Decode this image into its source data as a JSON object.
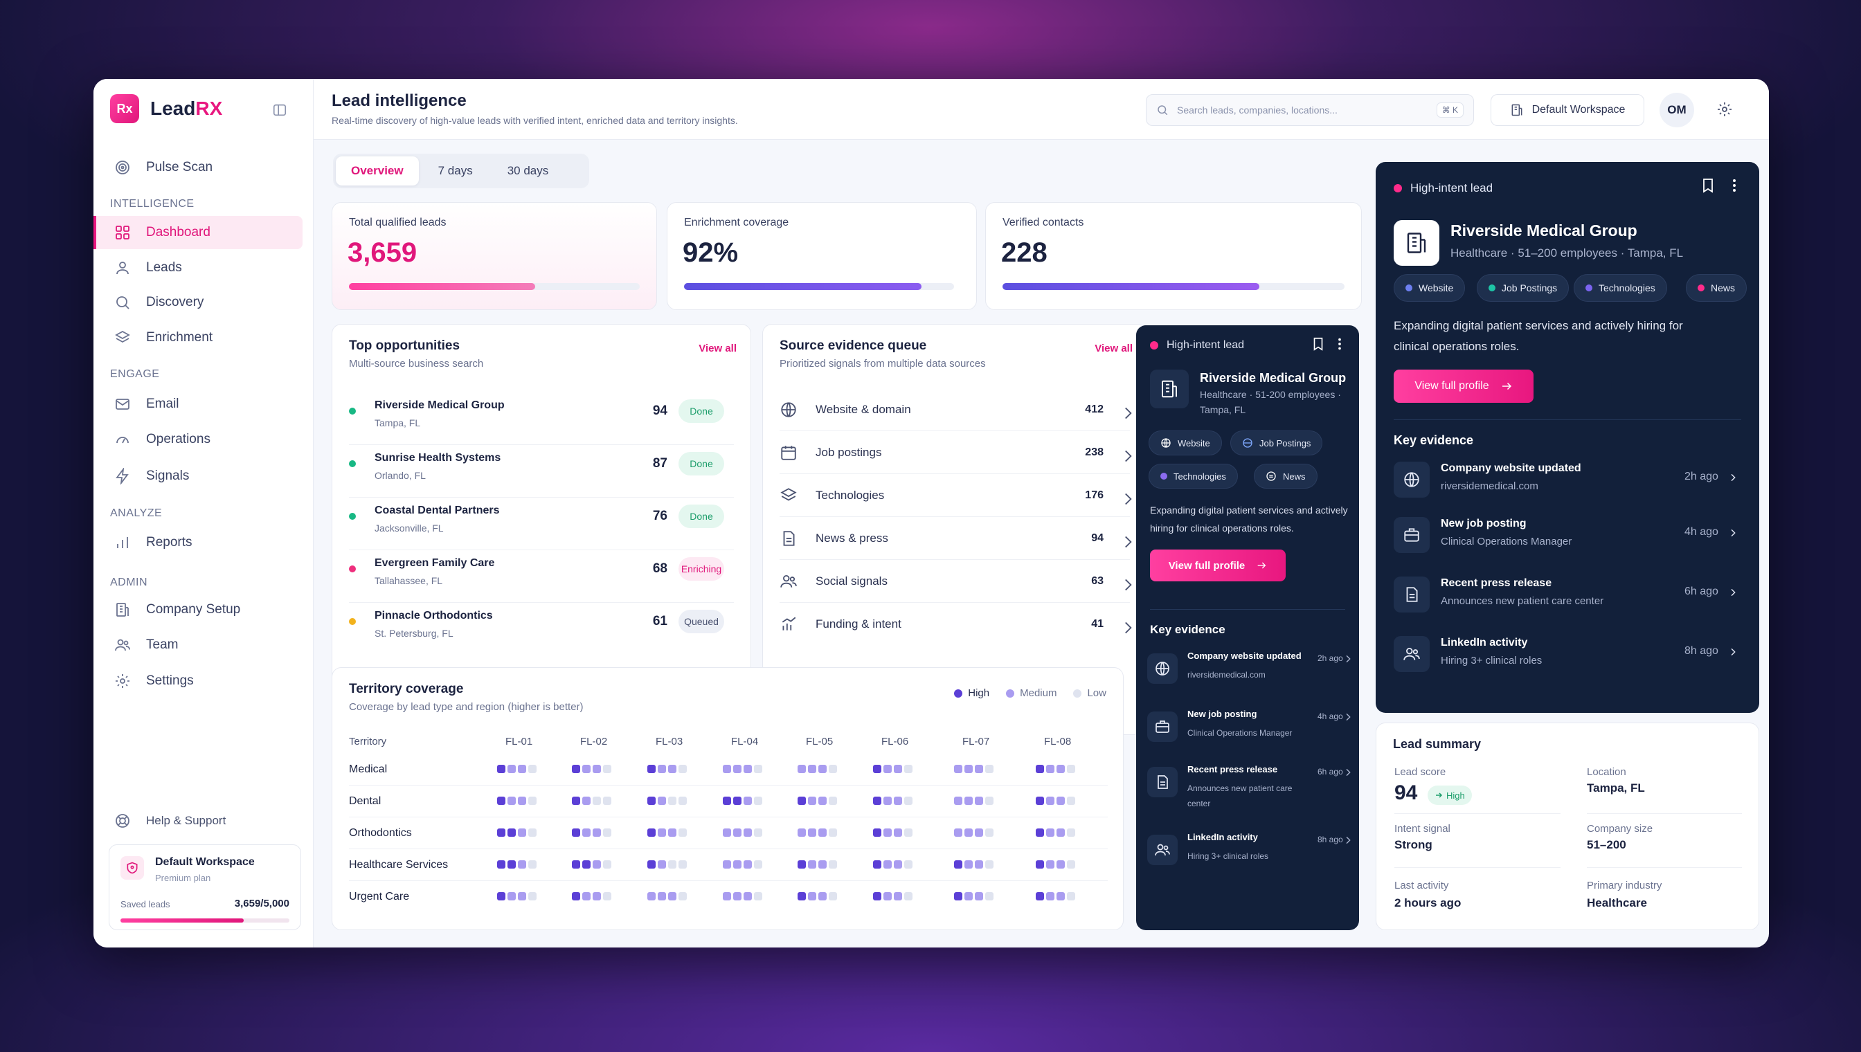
{
  "brand": {
    "logo": "Rx",
    "name_a": "Lead",
    "name_b": "RX"
  },
  "sidebar": {
    "top_item": "Pulse Scan",
    "sections": {
      "intelligence": "INTELLIGENCE",
      "engage": "ENGAGE",
      "analyze": "ANALYZE",
      "admin": "ADMIN"
    },
    "items": [
      "Dashboard",
      "Leads",
      "Discovery",
      "Enrichment",
      "Email",
      "Operations",
      "Signals",
      "Reports",
      "Company Setup",
      "Team",
      "Settings"
    ],
    "help": "Help & Support",
    "workspace": {
      "name": "Default Workspace",
      "plan": "Premium plan",
      "label": "Saved leads",
      "value": "3,659/5,000",
      "fraction": 0.73
    }
  },
  "header": {
    "title": "Lead intelligence",
    "subtitle": "Real-time discovery of high-value leads with verified intent, enriched data and territory insights.",
    "search_placeholder": "Search leads, companies, locations...",
    "shortcut": "⌘ K",
    "workspace_button": "Default Workspace",
    "avatar": "OM"
  },
  "tabs": [
    "Overview",
    "7 days",
    "30 days"
  ],
  "kpis": [
    {
      "label": "Total qualified leads",
      "value": "3,659",
      "fraction": 0.64
    },
    {
      "label": "Enrichment coverage",
      "value": "92%",
      "fraction": 0.88
    },
    {
      "label": "Verified contacts",
      "value": "228",
      "fraction": 0.75
    }
  ],
  "opportunities": {
    "title": "Top opportunities",
    "subtitle": "Multi-source business search",
    "view_all": "View all",
    "rows": [
      {
        "name": "Riverside Medical Group",
        "loc": "Tampa, FL",
        "score": "94",
        "status": "Done",
        "dot": "#18b884"
      },
      {
        "name": "Sunrise Health Systems",
        "loc": "Orlando, FL",
        "score": "87",
        "status": "Done",
        "dot": "#18b884"
      },
      {
        "name": "Coastal Dental Partners",
        "loc": "Jacksonville, FL",
        "score": "76",
        "status": "Done",
        "dot": "#18b884"
      },
      {
        "name": "Evergreen Family Care",
        "loc": "Tallahassee, FL",
        "score": "68",
        "status": "Enriching",
        "dot": "#ee2f7d"
      },
      {
        "name": "Pinnacle Orthodontics",
        "loc": "St. Petersburg, FL",
        "score": "61",
        "status": "Queued",
        "dot": "#f2b21d"
      }
    ]
  },
  "sources": {
    "title": "Source evidence queue",
    "subtitle": "Prioritized signals from multiple data sources",
    "view_all": "View all",
    "rows": [
      {
        "label": "Website & domain",
        "count": "412"
      },
      {
        "label": "Job postings",
        "count": "238"
      },
      {
        "label": "Technologies",
        "count": "176"
      },
      {
        "label": "News & press",
        "count": "94"
      },
      {
        "label": "Social signals",
        "count": "63"
      },
      {
        "label": "Funding & intent",
        "count": "41"
      }
    ]
  },
  "territory": {
    "title": "Territory coverage",
    "subtitle": "Coverage by lead type and region (higher is better)",
    "legend": [
      "High",
      "Medium",
      "Low"
    ],
    "colors": {
      "high": "#5b3fd6",
      "medium": "#a99cf0",
      "low": "#dfe3ef"
    },
    "col_header": "Territory",
    "columns": [
      "FL-01",
      "FL-02",
      "FL-03",
      "FL-04",
      "FL-05",
      "FL-06",
      "FL-07",
      "FL-08"
    ],
    "rows": [
      {
        "label": "Medical",
        "cells": [
          [
            2,
            1,
            1,
            0
          ],
          [
            2,
            1,
            1,
            0
          ],
          [
            2,
            1,
            1,
            0
          ],
          [
            1,
            1,
            1,
            0
          ],
          [
            1,
            1,
            1,
            0
          ],
          [
            2,
            1,
            1,
            0
          ],
          [
            1,
            1,
            1,
            0
          ],
          [
            2,
            1,
            1,
            0
          ]
        ]
      },
      {
        "label": "Dental",
        "cells": [
          [
            2,
            1,
            1,
            0
          ],
          [
            2,
            1,
            0,
            0
          ],
          [
            2,
            1,
            0,
            0
          ],
          [
            2,
            2,
            1,
            0
          ],
          [
            2,
            1,
            1,
            0
          ],
          [
            2,
            1,
            1,
            0
          ],
          [
            1,
            1,
            1,
            0
          ],
          [
            2,
            1,
            1,
            0
          ]
        ]
      },
      {
        "label": "Orthodontics",
        "cells": [
          [
            2,
            2,
            1,
            0
          ],
          [
            2,
            1,
            1,
            0
          ],
          [
            2,
            1,
            1,
            0
          ],
          [
            1,
            1,
            1,
            0
          ],
          [
            1,
            1,
            1,
            0
          ],
          [
            2,
            1,
            1,
            0
          ],
          [
            1,
            1,
            1,
            0
          ],
          [
            2,
            1,
            1,
            0
          ]
        ]
      },
      {
        "label": "Healthcare Services",
        "cells": [
          [
            2,
            2,
            1,
            0
          ],
          [
            2,
            2,
            1,
            0
          ],
          [
            2,
            1,
            0,
            0
          ],
          [
            1,
            1,
            1,
            0
          ],
          [
            2,
            1,
            1,
            0
          ],
          [
            2,
            1,
            1,
            0
          ],
          [
            2,
            1,
            1,
            0
          ],
          [
            2,
            1,
            1,
            0
          ]
        ]
      },
      {
        "label": "Urgent Care",
        "cells": [
          [
            2,
            1,
            1,
            0
          ],
          [
            2,
            1,
            1,
            0
          ],
          [
            1,
            1,
            1,
            0
          ],
          [
            1,
            1,
            1,
            0
          ],
          [
            2,
            1,
            1,
            0
          ],
          [
            2,
            1,
            1,
            0
          ],
          [
            2,
            1,
            1,
            0
          ],
          [
            2,
            1,
            1,
            0
          ]
        ]
      }
    ]
  },
  "lead_card_small": {
    "label": "High-intent lead",
    "name": "Riverside Medical Group",
    "meta1": "Healthcare · 51-200 employees ·",
    "meta2": "Tampa, FL",
    "chips": [
      "Website",
      "Job Postings",
      "Technologies",
      "News"
    ],
    "desc": "Expanding digital patient services and actively hiring for clinical operations roles.",
    "button": "View full profile",
    "evidence_title": "Key evidence",
    "evidence": [
      {
        "title": "Company website updated",
        "sub": "riversidemedical.com",
        "ago": "2h ago"
      },
      {
        "title": "New job posting",
        "sub": "Clinical Operations Manager",
        "ago": "4h ago"
      },
      {
        "title": "Recent press release",
        "sub": "Announces new patient care center",
        "ago": "6h ago"
      },
      {
        "title": "LinkedIn activity",
        "sub": "Hiring 3+ clinical roles",
        "ago": "8h ago"
      }
    ]
  },
  "lead_card_large": {
    "label": "High-intent lead",
    "name": "Riverside Medical Group",
    "meta": "Healthcare · 51–200 employees · Tampa, FL",
    "chips": [
      {
        "label": "Website",
        "color": "#6d7ff0"
      },
      {
        "label": "Job Postings",
        "color": "#1ec4a6"
      },
      {
        "label": "Technologies",
        "color": "#7b64f0"
      },
      {
        "label": "News",
        "color": "#ff2b8a"
      }
    ],
    "desc": "Expanding digital patient services and actively hiring for clinical operations roles.",
    "button": "View full profile",
    "evidence_title": "Key evidence",
    "evidence": [
      {
        "title": "Company website updated",
        "sub": "riversidemedical.com",
        "ago": "2h ago"
      },
      {
        "title": "New job posting",
        "sub": "Clinical Operations Manager",
        "ago": "4h ago"
      },
      {
        "title": "Recent press release",
        "sub": "Announces new patient care center",
        "ago": "6h ago"
      },
      {
        "title": "LinkedIn activity",
        "sub": "Hiring 3+ clinical roles",
        "ago": "8h ago"
      }
    ]
  },
  "summary": {
    "title": "Lead summary",
    "score_label": "Lead score",
    "score": "94",
    "score_badge": "High",
    "location_label": "Location",
    "location": "Tampa, FL",
    "intent_label": "Intent signal",
    "intent": "Strong",
    "size_label": "Company size",
    "size": "51–200",
    "activity_label": "Last activity",
    "activity": "2 hours ago",
    "industry_label": "Primary industry",
    "industry": "Healthcare"
  }
}
